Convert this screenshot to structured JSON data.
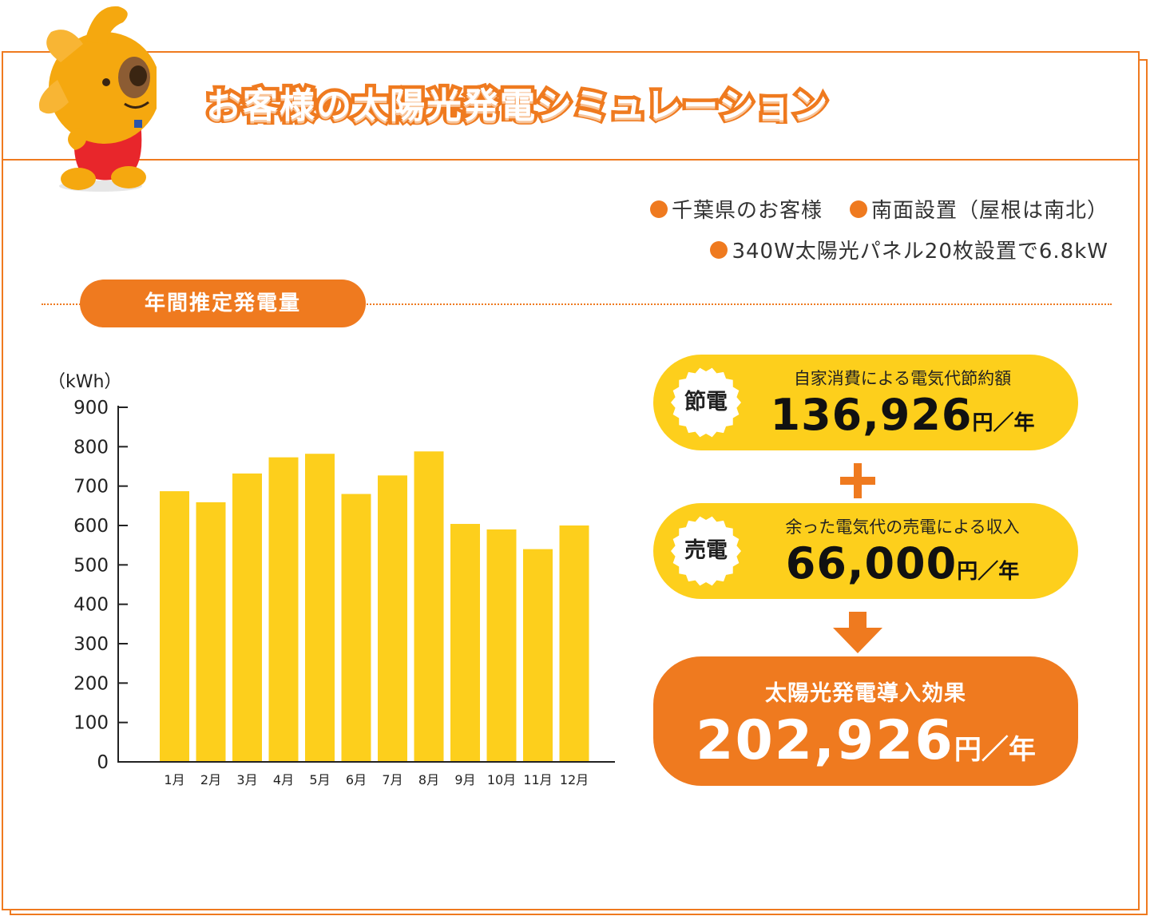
{
  "title": "お客様の太陽光発電シミュレーション",
  "info": {
    "customer": "千葉県のお客様",
    "installation": "南面設置（屋根は南北）",
    "panels": "340W太陽光パネル20枚設置で6.8kW"
  },
  "section_label": "年間推定発電量",
  "savings": {
    "badge": "節電",
    "label": "自家消費による電気代節約額",
    "value": "136,926",
    "unit": "円／年"
  },
  "selling": {
    "badge": "売電",
    "label": "余った電気代の売電による収入",
    "value": "66,000",
    "unit": "円／年"
  },
  "result": {
    "label": "太陽光発電導入効果",
    "value": "202,926",
    "unit": "円／年"
  },
  "colors": {
    "accent": "#ef7a1f",
    "bar": "#fdcf1c"
  },
  "icons": {
    "mascot": "dog-mascot-illustration",
    "plus": "plus-icon",
    "arrow": "arrow-down-icon"
  },
  "chart_data": {
    "type": "bar",
    "ylabel": "（kWh）",
    "ylim": [
      0,
      900
    ],
    "yticks": [
      0,
      100,
      200,
      300,
      400,
      500,
      600,
      700,
      800,
      900
    ],
    "categories": [
      "1月",
      "2月",
      "3月",
      "4月",
      "5月",
      "6月",
      "7月",
      "8月",
      "9月",
      "10月",
      "11月",
      "12月"
    ],
    "values": [
      687,
      659,
      732,
      773,
      782,
      680,
      727,
      788,
      604,
      590,
      540,
      600
    ],
    "grid": false,
    "legend": "none"
  }
}
